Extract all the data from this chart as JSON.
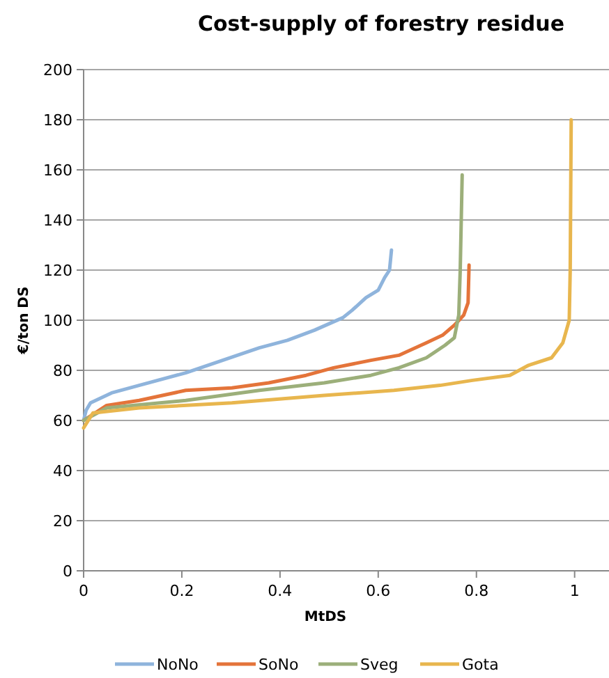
{
  "chart_data": {
    "type": "line",
    "title": "Cost-supply of forestry residue",
    "xlabel": "MtDS",
    "ylabel": "€/ton DS",
    "xlim": [
      0,
      1.07
    ],
    "xticks": [
      0,
      0.2,
      0.4,
      0.6,
      0.8,
      1
    ],
    "ylim": [
      0,
      200
    ],
    "yticks": [
      0,
      20,
      40,
      60,
      80,
      100,
      120,
      140,
      160,
      180,
      200
    ],
    "grid": "y",
    "legend": "bottom",
    "marker": "none",
    "line_style": "solid",
    "series": [
      {
        "name": "NoNo",
        "color": "#8fb4dc",
        "x": [
          0,
          0.005,
          0.014,
          0.057,
          0.113,
          0.208,
          0.283,
          0.358,
          0.415,
          0.47,
          0.528,
          0.547,
          0.575,
          0.6,
          0.613,
          0.623,
          0.627
        ],
        "values": [
          60,
          64,
          67,
          71,
          74,
          79,
          84,
          89,
          92,
          96,
          101,
          104,
          109,
          112,
          117,
          120,
          128
        ]
      },
      {
        "name": "SoNo",
        "color": "#e4743a",
        "x": [
          0,
          0.047,
          0.113,
          0.208,
          0.302,
          0.377,
          0.453,
          0.509,
          0.585,
          0.642,
          0.698,
          0.731,
          0.755,
          0.774,
          0.783,
          0.785
        ],
        "values": [
          60,
          66,
          68,
          72,
          73,
          75,
          78,
          81,
          84,
          86,
          91,
          94,
          98,
          102,
          107,
          122
        ]
      },
      {
        "name": "Sveg",
        "color": "#9caf7a",
        "x": [
          0,
          0.047,
          0.208,
          0.358,
          0.49,
          0.585,
          0.642,
          0.698,
          0.736,
          0.755,
          0.764,
          0.767,
          0.771
        ],
        "values": [
          60,
          65,
          68,
          72,
          75,
          78,
          81,
          85,
          90,
          93,
          102,
          120,
          158
        ]
      },
      {
        "name": "Gota",
        "color": "#e8b64e",
        "x": [
          0,
          0.019,
          0.113,
          0.302,
          0.49,
          0.632,
          0.726,
          0.792,
          0.868,
          0.906,
          0.953,
          0.976,
          0.989,
          0.991,
          0.993
        ],
        "values": [
          57,
          63,
          65,
          67,
          70,
          72,
          74,
          76,
          78,
          82,
          85,
          91,
          100,
          120,
          180
        ]
      }
    ]
  }
}
